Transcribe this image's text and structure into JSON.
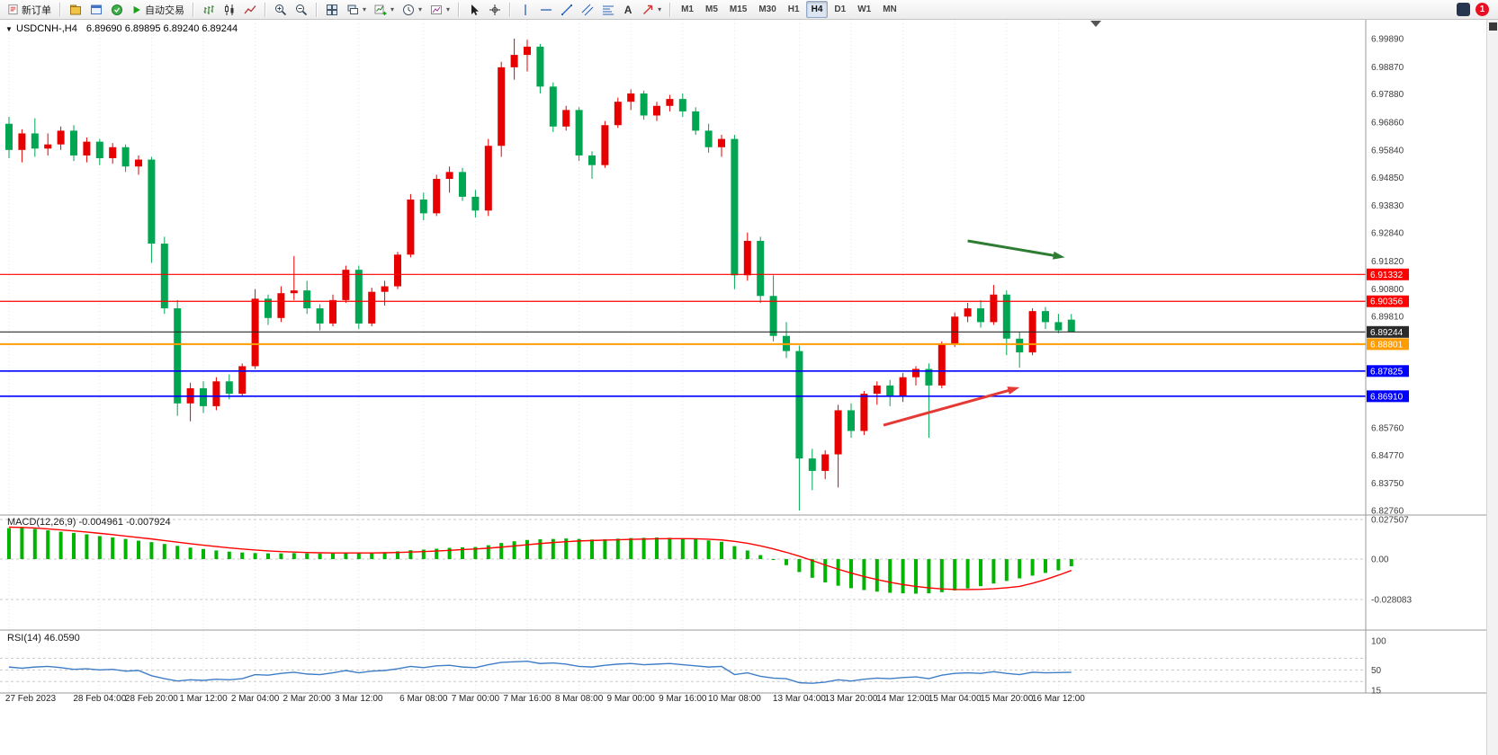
{
  "toolbar": {
    "new_order": "新订单",
    "auto_trading": "自动交易",
    "timeframes": [
      "M1",
      "M5",
      "M15",
      "M30",
      "H1",
      "H4",
      "D1",
      "W1",
      "MN"
    ],
    "active_timeframe": "H4",
    "text_tool": "A",
    "notification_badge": "1"
  },
  "chart": {
    "symbol_period": "USDCNH-,H4",
    "ohlc_line": "6.89690 6.89895 6.89240 6.89244",
    "macd_label": "MACD(12,26,9) -0.004961 -0.007924",
    "rsi_label": "RSI(14) 46.0590",
    "one_click_glyph": "▼"
  },
  "chart_data": {
    "type": "candlestick",
    "symbol": "USDCNH-",
    "period": "H4",
    "current_ohlc": {
      "open": 6.8969,
      "high": 6.89895,
      "low": 6.8924,
      "close": 6.89244
    },
    "ylim": [
      6.82696,
      6.9989
    ],
    "colors": {
      "bull": "#e60000",
      "bear": "#00a651",
      "macd_hist": "#00b400",
      "macd_signal": "#ff0000",
      "rsi_line": "#3f7ec7",
      "grid": "#e7e7e7"
    },
    "price_axis_labels": [
      "6.99890",
      "6.98870",
      "6.97880",
      "6.96860",
      "6.95840",
      "6.94850",
      "6.93830",
      "6.92840",
      "6.91820",
      "6.90800",
      "6.89810",
      "6.85760",
      "6.84770",
      "6.83750",
      "6.82760"
    ],
    "time_labels": [
      {
        "i": 0,
        "t": "27 Feb 2023"
      },
      {
        "i": 7,
        "t": "28 Feb 04:00"
      },
      {
        "i": 11,
        "t": "28 Feb 20:00"
      },
      {
        "i": 15,
        "t": "1 Mar 12:00"
      },
      {
        "i": 19,
        "t": "2 Mar 04:00"
      },
      {
        "i": 23,
        "t": "2 Mar 20:00"
      },
      {
        "i": 27,
        "t": "3 Mar 12:00"
      },
      {
        "i": 32,
        "t": "6 Mar 08:00"
      },
      {
        "i": 36,
        "t": "7 Mar 00:00"
      },
      {
        "i": 40,
        "t": "7 Mar 16:00"
      },
      {
        "i": 44,
        "t": "8 Mar 08:00"
      },
      {
        "i": 48,
        "t": "9 Mar 00:00"
      },
      {
        "i": 52,
        "t": "9 Mar 16:00"
      },
      {
        "i": 56,
        "t": "10 Mar 08:00"
      },
      {
        "i": 61,
        "t": "13 Mar 04:00"
      },
      {
        "i": 65,
        "t": "13 Mar 20:00"
      },
      {
        "i": 69,
        "t": "14 Mar 12:00"
      },
      {
        "i": 73,
        "t": "15 Mar 04:00"
      },
      {
        "i": 77,
        "t": "15 Mar 20:00"
      },
      {
        "i": 81,
        "t": "16 Mar 12:00"
      }
    ],
    "candles": [
      [
        6.968,
        6.9705,
        6.9555,
        6.9585
      ],
      [
        6.9585,
        6.966,
        6.954,
        6.9645
      ],
      [
        6.9645,
        6.97,
        6.956,
        6.959
      ],
      [
        6.959,
        6.9645,
        6.9565,
        6.9605
      ],
      [
        6.9605,
        6.967,
        6.9585,
        6.9655
      ],
      [
        6.9655,
        6.9675,
        6.9545,
        6.9565
      ],
      [
        6.9565,
        6.963,
        6.954,
        6.9615
      ],
      [
        6.9615,
        6.9625,
        6.953,
        6.9555
      ],
      [
        6.9555,
        6.961,
        6.9535,
        6.9595
      ],
      [
        6.9595,
        6.9605,
        6.9505,
        6.9525
      ],
      [
        6.9525,
        6.9565,
        6.9495,
        6.955
      ],
      [
        6.955,
        6.956,
        6.9175,
        6.9245
      ],
      [
        6.9245,
        6.927,
        6.899,
        6.901
      ],
      [
        6.901,
        6.904,
        6.862,
        6.8665
      ],
      [
        6.8665,
        6.874,
        6.86,
        6.872
      ],
      [
        6.872,
        6.8745,
        6.863,
        6.8655
      ],
      [
        6.8655,
        6.876,
        6.864,
        6.8745
      ],
      [
        6.8745,
        6.877,
        6.868,
        6.87
      ],
      [
        6.87,
        6.881,
        6.869,
        6.88
      ],
      [
        6.88,
        6.908,
        6.879,
        6.9045
      ],
      [
        6.9045,
        6.906,
        6.895,
        6.8975
      ],
      [
        6.8975,
        6.909,
        6.896,
        6.9065
      ],
      [
        6.9065,
        6.92,
        6.904,
        6.9075
      ],
      [
        6.9075,
        6.911,
        6.899,
        6.901
      ],
      [
        6.901,
        6.9025,
        6.893,
        6.8955
      ],
      [
        6.8955,
        6.906,
        6.8945,
        6.904
      ],
      [
        6.904,
        6.9165,
        6.903,
        6.915
      ],
      [
        6.915,
        6.9165,
        6.8935,
        6.8955
      ],
      [
        6.8955,
        6.9085,
        6.8945,
        6.907
      ],
      [
        6.907,
        6.911,
        6.902,
        6.909
      ],
      [
        6.909,
        6.9215,
        6.908,
        6.9205
      ],
      [
        6.9205,
        6.9425,
        6.9195,
        6.9405
      ],
      [
        6.9405,
        6.943,
        6.933,
        6.9355
      ],
      [
        6.9355,
        6.9495,
        6.9345,
        6.948
      ],
      [
        6.948,
        6.9525,
        6.943,
        6.9505
      ],
      [
        6.9505,
        6.952,
        6.94,
        6.9415
      ],
      [
        6.9415,
        6.944,
        6.934,
        6.9365
      ],
      [
        6.9365,
        6.9625,
        6.9345,
        6.96
      ],
      [
        6.96,
        6.9905,
        6.956,
        6.9885
      ],
      [
        6.9885,
        6.9989,
        6.984,
        6.993
      ],
      [
        6.993,
        6.9985,
        6.987,
        6.996
      ],
      [
        6.996,
        6.997,
        6.979,
        6.9815
      ],
      [
        6.9815,
        6.983,
        6.965,
        6.967
      ],
      [
        6.967,
        6.9745,
        6.9655,
        6.973
      ],
      [
        6.973,
        6.974,
        6.9545,
        6.9565
      ],
      [
        6.9565,
        6.958,
        6.948,
        6.953
      ],
      [
        6.953,
        6.969,
        6.952,
        6.9675
      ],
      [
        6.9675,
        6.9775,
        6.9665,
        6.976
      ],
      [
        6.976,
        6.9805,
        6.973,
        6.979
      ],
      [
        6.979,
        6.98,
        6.9695,
        6.971
      ],
      [
        6.971,
        6.976,
        6.969,
        6.9745
      ],
      [
        6.9745,
        6.9785,
        6.9725,
        6.977
      ],
      [
        6.977,
        6.979,
        6.9705,
        6.9725
      ],
      [
        6.9725,
        6.974,
        6.964,
        6.9655
      ],
      [
        6.9655,
        6.968,
        6.9575,
        6.9595
      ],
      [
        6.9595,
        6.964,
        6.956,
        6.9625
      ],
      [
        6.9625,
        6.964,
        6.908,
        6.913
      ],
      [
        6.913,
        6.9285,
        6.911,
        6.9255
      ],
      [
        6.9255,
        6.927,
        6.903,
        6.9055
      ],
      [
        6.9055,
        6.913,
        6.889,
        6.891
      ],
      [
        6.891,
        6.896,
        6.883,
        6.8855
      ],
      [
        6.8855,
        6.8875,
        6.8276,
        6.8465
      ],
      [
        6.8465,
        6.85,
        6.835,
        6.842
      ],
      [
        6.842,
        6.8495,
        6.839,
        6.848
      ],
      [
        6.848,
        6.866,
        6.836,
        6.864
      ],
      [
        6.864,
        6.8665,
        6.854,
        6.8565
      ],
      [
        6.8565,
        6.871,
        6.855,
        6.87
      ],
      [
        6.87,
        6.8745,
        6.866,
        6.873
      ],
      [
        6.873,
        6.875,
        6.8655,
        6.869
      ],
      [
        6.869,
        6.8775,
        6.867,
        6.876
      ],
      [
        6.876,
        6.88,
        6.873,
        6.879
      ],
      [
        6.879,
        6.881,
        6.854,
        6.873
      ],
      [
        6.873,
        6.889,
        6.872,
        6.888
      ],
      [
        6.888,
        6.8995,
        6.887,
        6.898
      ],
      [
        6.898,
        6.903,
        6.896,
        6.901
      ],
      [
        6.901,
        6.904,
        6.894,
        6.896
      ],
      [
        6.896,
        6.9095,
        6.895,
        6.906
      ],
      [
        6.906,
        6.9075,
        6.884,
        6.89
      ],
      [
        6.89,
        6.8925,
        6.8795,
        6.885
      ],
      [
        6.885,
        6.901,
        6.884,
        6.9
      ],
      [
        6.9,
        6.9015,
        6.8935,
        6.896
      ],
      [
        6.896,
        6.899,
        6.892,
        6.893
      ],
      [
        6.8969,
        6.89895,
        6.8924,
        6.89244
      ]
    ],
    "hlines": [
      {
        "price": 6.91332,
        "color": "#ff0000",
        "width": 1.2
      },
      {
        "price": 6.90356,
        "color": "#ff0000",
        "width": 1.2
      },
      {
        "price": 6.89244,
        "color": "#2b2b2b",
        "width": 1.2
      },
      {
        "price": 6.88801,
        "color": "#ff9c00",
        "width": 2
      },
      {
        "price": 6.87825,
        "color": "#0000ff",
        "width": 1.6
      },
      {
        "price": 6.8691,
        "color": "#0000ff",
        "width": 1.6
      }
    ],
    "drawings": [
      {
        "name": "trend-arrow-green",
        "color": "#2e7d32",
        "x1_bar": 74,
        "price1": 6.9255,
        "x2_bar": 81.5,
        "price2": 6.9195
      },
      {
        "name": "trend-arrow-red",
        "color": "#e53935",
        "x1_bar": 67.5,
        "price1": 6.8586,
        "x2_bar": 78,
        "price2": 6.8723
      }
    ],
    "macd": {
      "label": "MACD(12,26,9)",
      "main_value": "-0.004961",
      "signal_value": "-0.007924",
      "ylim": [
        -0.028083,
        0.027507
      ],
      "axis_labels": [
        {
          "v": 0.027507,
          "t": "0.027507"
        },
        {
          "v": 0,
          "t": "0.00"
        },
        {
          "v": -0.028083,
          "t": "-0.028083"
        }
      ],
      "values": [
        0.0215,
        0.022,
        0.021,
        0.02,
        0.019,
        0.0182,
        0.0172,
        0.016,
        0.015,
        0.014,
        0.0128,
        0.0118,
        0.0105,
        0.0092,
        0.008,
        0.007,
        0.006,
        0.0052,
        0.0046,
        0.0042,
        0.004,
        0.004,
        0.0042,
        0.004,
        0.0038,
        0.004,
        0.0044,
        0.0042,
        0.0044,
        0.0048,
        0.0054,
        0.0062,
        0.0066,
        0.0072,
        0.0078,
        0.0082,
        0.0084,
        0.0096,
        0.0112,
        0.0124,
        0.0133,
        0.0138,
        0.014,
        0.0143,
        0.014,
        0.0136,
        0.0138,
        0.0142,
        0.0146,
        0.0148,
        0.015,
        0.0148,
        0.0144,
        0.0138,
        0.013,
        0.012,
        0.009,
        0.006,
        0.0028,
        -0.0006,
        -0.0042,
        -0.009,
        -0.013,
        -0.0162,
        -0.0185,
        -0.0202,
        -0.0215,
        -0.0226,
        -0.0234,
        -0.0238,
        -0.024,
        -0.0238,
        -0.023,
        -0.0218,
        -0.0204,
        -0.0188,
        -0.017,
        -0.0152,
        -0.0134,
        -0.0115,
        -0.0096,
        -0.0078,
        -0.005
      ],
      "signal": [
        0.0222,
        0.022,
        0.0216,
        0.021,
        0.0203,
        0.0196,
        0.0188,
        0.0179,
        0.017,
        0.016,
        0.015,
        0.014,
        0.0129,
        0.0118,
        0.0107,
        0.0097,
        0.0087,
        0.0078,
        0.007,
        0.0063,
        0.0057,
        0.0052,
        0.0049,
        0.0046,
        0.0044,
        0.0043,
        0.0043,
        0.0043,
        0.0043,
        0.0044,
        0.0046,
        0.0049,
        0.0052,
        0.0056,
        0.0061,
        0.0066,
        0.007,
        0.0076,
        0.0083,
        0.0091,
        0.01,
        0.0108,
        0.0115,
        0.0121,
        0.0126,
        0.0129,
        0.0132,
        0.0134,
        0.0137,
        0.0139,
        0.0141,
        0.0142,
        0.0142,
        0.0141,
        0.0138,
        0.0133,
        0.0123,
        0.011,
        0.0092,
        0.0071,
        0.0047,
        0.002,
        -0.001,
        -0.0041,
        -0.007,
        -0.0097,
        -0.0121,
        -0.0142,
        -0.0161,
        -0.0177,
        -0.019,
        -0.02,
        -0.0207,
        -0.0211,
        -0.0212,
        -0.021,
        -0.0206,
        -0.0199,
        -0.019,
        -0.0168,
        -0.0142,
        -0.0112,
        -0.0079
      ]
    },
    "rsi": {
      "label": "RSI(14)",
      "value": "46.0590",
      "ylim": [
        15,
        100
      ],
      "axis_labels": [
        {
          "v": 100,
          "t": "100"
        },
        {
          "v": 50,
          "t": "50"
        },
        {
          "v": 15,
          "t": "15"
        }
      ],
      "levels": [
        70,
        50,
        30
      ],
      "values": [
        55,
        53,
        55,
        56,
        54,
        51,
        52,
        50,
        51,
        48,
        49,
        40,
        35,
        31,
        33,
        32,
        34,
        33,
        35,
        42,
        41,
        44,
        46,
        43,
        42,
        45,
        49,
        45,
        48,
        49,
        52,
        56,
        54,
        57,
        58,
        55,
        54,
        59,
        63,
        64,
        65,
        61,
        62,
        60,
        56,
        55,
        58,
        60,
        61,
        59,
        60,
        61,
        59,
        57,
        55,
        56,
        42,
        45,
        39,
        36,
        35,
        28,
        27,
        29,
        33,
        31,
        34,
        36,
        35,
        37,
        38,
        35,
        41,
        44,
        45,
        44,
        47,
        44,
        42,
        46,
        45,
        45.5,
        46.06
      ]
    }
  }
}
